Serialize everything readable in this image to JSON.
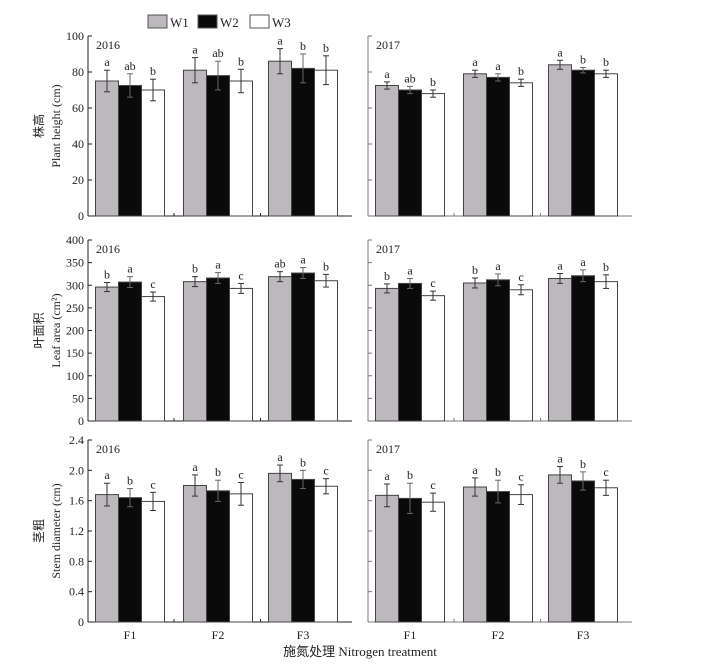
{
  "legend": [
    {
      "name": "W1",
      "color": "#bdb8bd"
    },
    {
      "name": "W2",
      "color": "#0a0a0a"
    },
    {
      "name": "W3",
      "color": "#ffffff"
    }
  ],
  "xlabel": "施氮处理 Nitrogen treatment",
  "chart_data": [
    {
      "type": "bar",
      "panel": "plant-height-2016",
      "year": "2016",
      "ylabel_cn": "株高",
      "ylabel": "Plant height (cm)",
      "ylim": [
        0,
        100
      ],
      "yticks": [
        "0",
        "20",
        "40",
        "60",
        "80",
        "100"
      ],
      "categories": [
        "F1",
        "F2",
        "F3"
      ],
      "series": [
        {
          "name": "W1",
          "values": [
            75,
            81,
            86
          ],
          "errors": [
            6,
            7,
            7
          ],
          "letters": [
            "a",
            "a",
            "a"
          ]
        },
        {
          "name": "W2",
          "values": [
            72.5,
            78,
            82
          ],
          "errors": [
            6.5,
            8,
            8
          ],
          "letters": [
            "ab",
            "ab",
            "b"
          ]
        },
        {
          "name": "W3",
          "values": [
            70,
            75,
            81
          ],
          "errors": [
            6,
            6.5,
            8
          ],
          "letters": [
            "b",
            "b",
            "b"
          ]
        }
      ]
    },
    {
      "type": "bar",
      "panel": "plant-height-2017",
      "year": "2017",
      "ylim": [
        0,
        100
      ],
      "categories": [
        "F1",
        "F2",
        "F3"
      ],
      "series": [
        {
          "name": "W1",
          "values": [
            72.5,
            79,
            84
          ],
          "errors": [
            2,
            2,
            2.5
          ],
          "letters": [
            "a",
            "a",
            "a"
          ]
        },
        {
          "name": "W2",
          "values": [
            70,
            77,
            81
          ],
          "errors": [
            2,
            2,
            1.5
          ],
          "letters": [
            "ab",
            "a",
            "b"
          ]
        },
        {
          "name": "W3",
          "values": [
            68,
            74,
            79
          ],
          "errors": [
            2,
            2,
            2
          ],
          "letters": [
            "b",
            "b",
            "b"
          ]
        }
      ]
    },
    {
      "type": "bar",
      "panel": "leaf-area-2016",
      "year": "2016",
      "ylabel_cn": "叶面积",
      "ylabel": "Leaf area (cm²)",
      "ylim": [
        0,
        400
      ],
      "yticks": [
        "0",
        "50",
        "100",
        "150",
        "200",
        "250",
        "300",
        "350",
        "400"
      ],
      "categories": [
        "F1",
        "F2",
        "F3"
      ],
      "series": [
        {
          "name": "W1",
          "values": [
            296,
            308,
            319
          ],
          "errors": [
            10,
            11,
            11
          ],
          "letters": [
            "b",
            "b",
            "ab"
          ]
        },
        {
          "name": "W2",
          "values": [
            307,
            316,
            327
          ],
          "errors": [
            12,
            12,
            12
          ],
          "letters": [
            "a",
            "a",
            "a"
          ]
        },
        {
          "name": "W3",
          "values": [
            275,
            293,
            310
          ],
          "errors": [
            10,
            11,
            14
          ],
          "letters": [
            "c",
            "c",
            "b"
          ]
        }
      ]
    },
    {
      "type": "bar",
      "panel": "leaf-area-2017",
      "year": "2017",
      "ylim": [
        0,
        400
      ],
      "categories": [
        "F1",
        "F2",
        "F3"
      ],
      "series": [
        {
          "name": "W1",
          "values": [
            293,
            305,
            315
          ],
          "errors": [
            10,
            11,
            11
          ],
          "letters": [
            "b",
            "b",
            "a"
          ]
        },
        {
          "name": "W2",
          "values": [
            304,
            312,
            321
          ],
          "errors": [
            11,
            13,
            13
          ],
          "letters": [
            "a",
            "a",
            "a"
          ]
        },
        {
          "name": "W3",
          "values": [
            277,
            290,
            308
          ],
          "errors": [
            10,
            11,
            15
          ],
          "letters": [
            "c",
            "c",
            "b"
          ]
        }
      ]
    },
    {
      "type": "bar",
      "panel": "stem-diameter-2016",
      "year": "2016",
      "ylabel_cn": "茎粗",
      "ylabel": "Stem diameter (cm)",
      "ylim": [
        0,
        2.4
      ],
      "yticks": [
        "0",
        "0.4",
        "0.8",
        "1.2",
        "1.6",
        "2.0",
        "2.4"
      ],
      "categories": [
        "F1",
        "F2",
        "F3"
      ],
      "series": [
        {
          "name": "W1",
          "values": [
            1.68,
            1.8,
            1.96
          ],
          "errors": [
            0.15,
            0.14,
            0.11
          ],
          "letters": [
            "a",
            "a",
            "a"
          ]
        },
        {
          "name": "W2",
          "values": [
            1.64,
            1.73,
            1.88
          ],
          "errors": [
            0.12,
            0.14,
            0.12
          ],
          "letters": [
            "b",
            "b",
            "b"
          ]
        },
        {
          "name": "W3",
          "values": [
            1.59,
            1.69,
            1.79
          ],
          "errors": [
            0.12,
            0.15,
            0.1
          ],
          "letters": [
            "c",
            "c",
            "c"
          ]
        }
      ]
    },
    {
      "type": "bar",
      "panel": "stem-diameter-2017",
      "year": "2017",
      "ylim": [
        0,
        2.4
      ],
      "categories": [
        "F1",
        "F2",
        "F3"
      ],
      "series": [
        {
          "name": "W1",
          "values": [
            1.67,
            1.78,
            1.94
          ],
          "errors": [
            0.15,
            0.12,
            0.11
          ],
          "letters": [
            "a",
            "a",
            "a"
          ]
        },
        {
          "name": "W2",
          "values": [
            1.63,
            1.72,
            1.86
          ],
          "errors": [
            0.2,
            0.15,
            0.12
          ],
          "letters": [
            "b",
            "b",
            "b"
          ]
        },
        {
          "name": "W3",
          "values": [
            1.58,
            1.68,
            1.77
          ],
          "errors": [
            0.12,
            0.13,
            0.1
          ],
          "letters": [
            "c",
            "c",
            "c"
          ]
        }
      ]
    }
  ]
}
